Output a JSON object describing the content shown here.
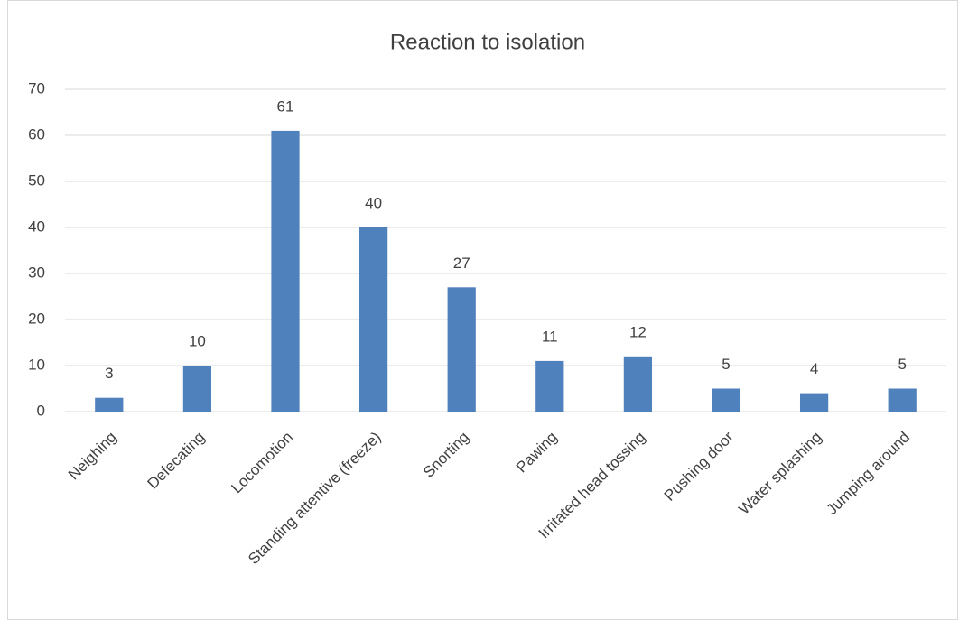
{
  "chart_data": {
    "type": "bar",
    "title": "Reaction to isolation",
    "categories": [
      "Neighing",
      "Defecating",
      "Locomotion",
      "Standing attentive (freeze)",
      "Snorting",
      "Pawing",
      "Irritated head tossing",
      "Pushing door",
      "Water splashing",
      "Jumping around"
    ],
    "values": [
      3,
      10,
      61,
      40,
      27,
      11,
      12,
      5,
      4,
      5
    ],
    "color": "#4f81bd",
    "ylim": [
      0,
      70
    ],
    "yticks": [
      0,
      10,
      20,
      30,
      40,
      50,
      60,
      70
    ],
    "grid": true,
    "data_labels": true
  }
}
